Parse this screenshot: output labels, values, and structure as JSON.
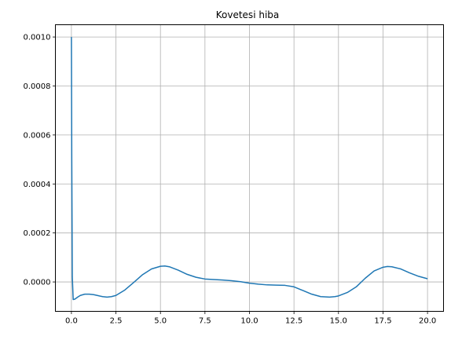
{
  "chart_data": {
    "type": "line",
    "title": "Kovetesi hiba",
    "xlabel": "",
    "ylabel": "",
    "xlim": [
      -0.9,
      20.9
    ],
    "ylim": [
      -0.00012,
      0.00105
    ],
    "grid": true,
    "x_ticks": [
      0.0,
      2.5,
      5.0,
      7.5,
      10.0,
      12.5,
      15.0,
      17.5,
      20.0
    ],
    "x_tick_labels": [
      "0.0",
      "2.5",
      "5.0",
      "7.5",
      "10.0",
      "12.5",
      "15.0",
      "17.5",
      "20.0"
    ],
    "y_ticks": [
      0.0,
      0.0002,
      0.0004,
      0.0006,
      0.0008,
      0.001
    ],
    "y_tick_labels": [
      "0.0000",
      "0.0002",
      "0.0004",
      "0.0006",
      "0.0008",
      "0.0010"
    ],
    "line_color": "#1f77b4",
    "series": [
      {
        "x": [
          0,
          0.02,
          0.05,
          0.1,
          0.2,
          0.35,
          0.5,
          0.75,
          1.0,
          1.25,
          1.5,
          1.75,
          2.0,
          2.25,
          2.5,
          3.0,
          3.5,
          4.0,
          4.5,
          5.0,
          5.25,
          5.5,
          6.0,
          6.5,
          7.0,
          7.5,
          8.0,
          8.5,
          9.0,
          9.5,
          10.0,
          10.5,
          11.0,
          11.5,
          12.0,
          12.5,
          13.0,
          13.5,
          14.0,
          14.5,
          14.8,
          15.0,
          15.5,
          16.0,
          16.5,
          17.0,
          17.5,
          17.75,
          18.0,
          18.5,
          19.0,
          19.5,
          20.0
        ],
        "y": [
          0.001,
          0.0005,
          2e-05,
          -7.2e-05,
          -7e-05,
          -6.2e-05,
          -5.5e-05,
          -5e-05,
          -5e-05,
          -5.2e-05,
          -5.6e-05,
          -6e-05,
          -6.2e-05,
          -6e-05,
          -5.5e-05,
          -3.3e-05,
          -2e-06,
          3e-05,
          5.3e-05,
          6.4e-05,
          6.5e-05,
          6.2e-05,
          4.8e-05,
          3.1e-05,
          1.9e-05,
          1.2e-05,
          1e-05,
          8e-06,
          5e-06,
          1e-06,
          -5e-06,
          -9e-06,
          -1.2e-05,
          -1.3e-05,
          -1.4e-05,
          -2e-05,
          -3.5e-05,
          -5e-05,
          -6e-05,
          -6.2e-05,
          -6e-05,
          -5.7e-05,
          -4.3e-05,
          -2e-05,
          1.5e-05,
          4.5e-05,
          6e-05,
          6.3e-05,
          6.2e-05,
          5.3e-05,
          3.7e-05,
          2.3e-05,
          1.3e-05
        ]
      }
    ]
  }
}
